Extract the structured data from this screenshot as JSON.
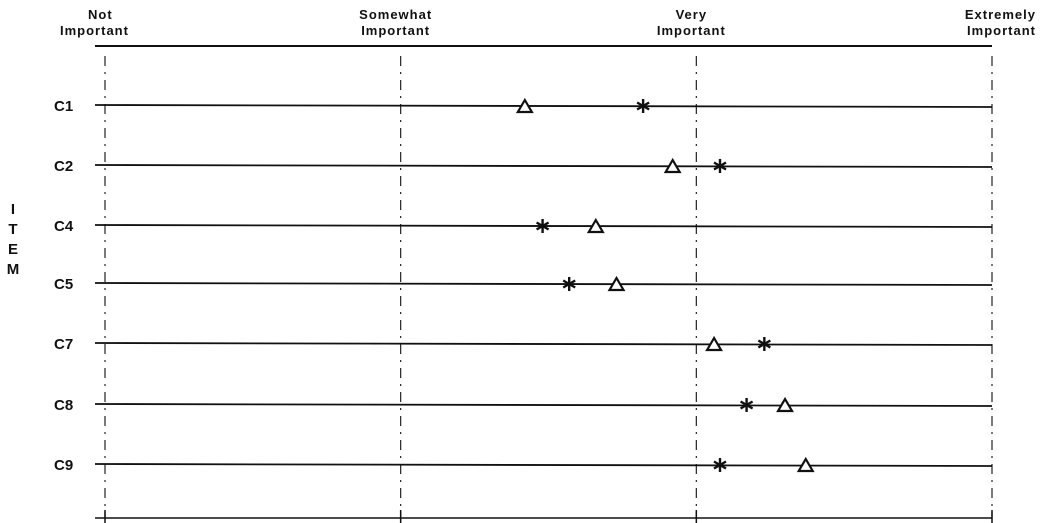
{
  "chart_data": {
    "type": "scatter",
    "ylabel": "ITEM",
    "x_ticks": [
      {
        "value": 1,
        "label_lines": [
          "Not",
          "Important"
        ]
      },
      {
        "value": 2,
        "label_lines": [
          "Somewhat",
          "Important"
        ]
      },
      {
        "value": 3,
        "label_lines": [
          "Very",
          "Important"
        ]
      },
      {
        "value": 4,
        "label_lines": [
          "Extremely",
          "Important"
        ]
      }
    ],
    "xlim": [
      1,
      4
    ],
    "categories": [
      "C1",
      "C2",
      "C4",
      "C5",
      "C7",
      "C8",
      "C9"
    ],
    "series": [
      {
        "marker": "triangle",
        "values": [
          2.42,
          2.92,
          2.66,
          2.73,
          3.06,
          3.3,
          3.37
        ]
      },
      {
        "marker": "asterisk",
        "values": [
          2.82,
          3.08,
          2.48,
          2.57,
          3.23,
          3.17,
          3.08
        ]
      }
    ],
    "gridlines": "dashed verticals at each tick"
  }
}
